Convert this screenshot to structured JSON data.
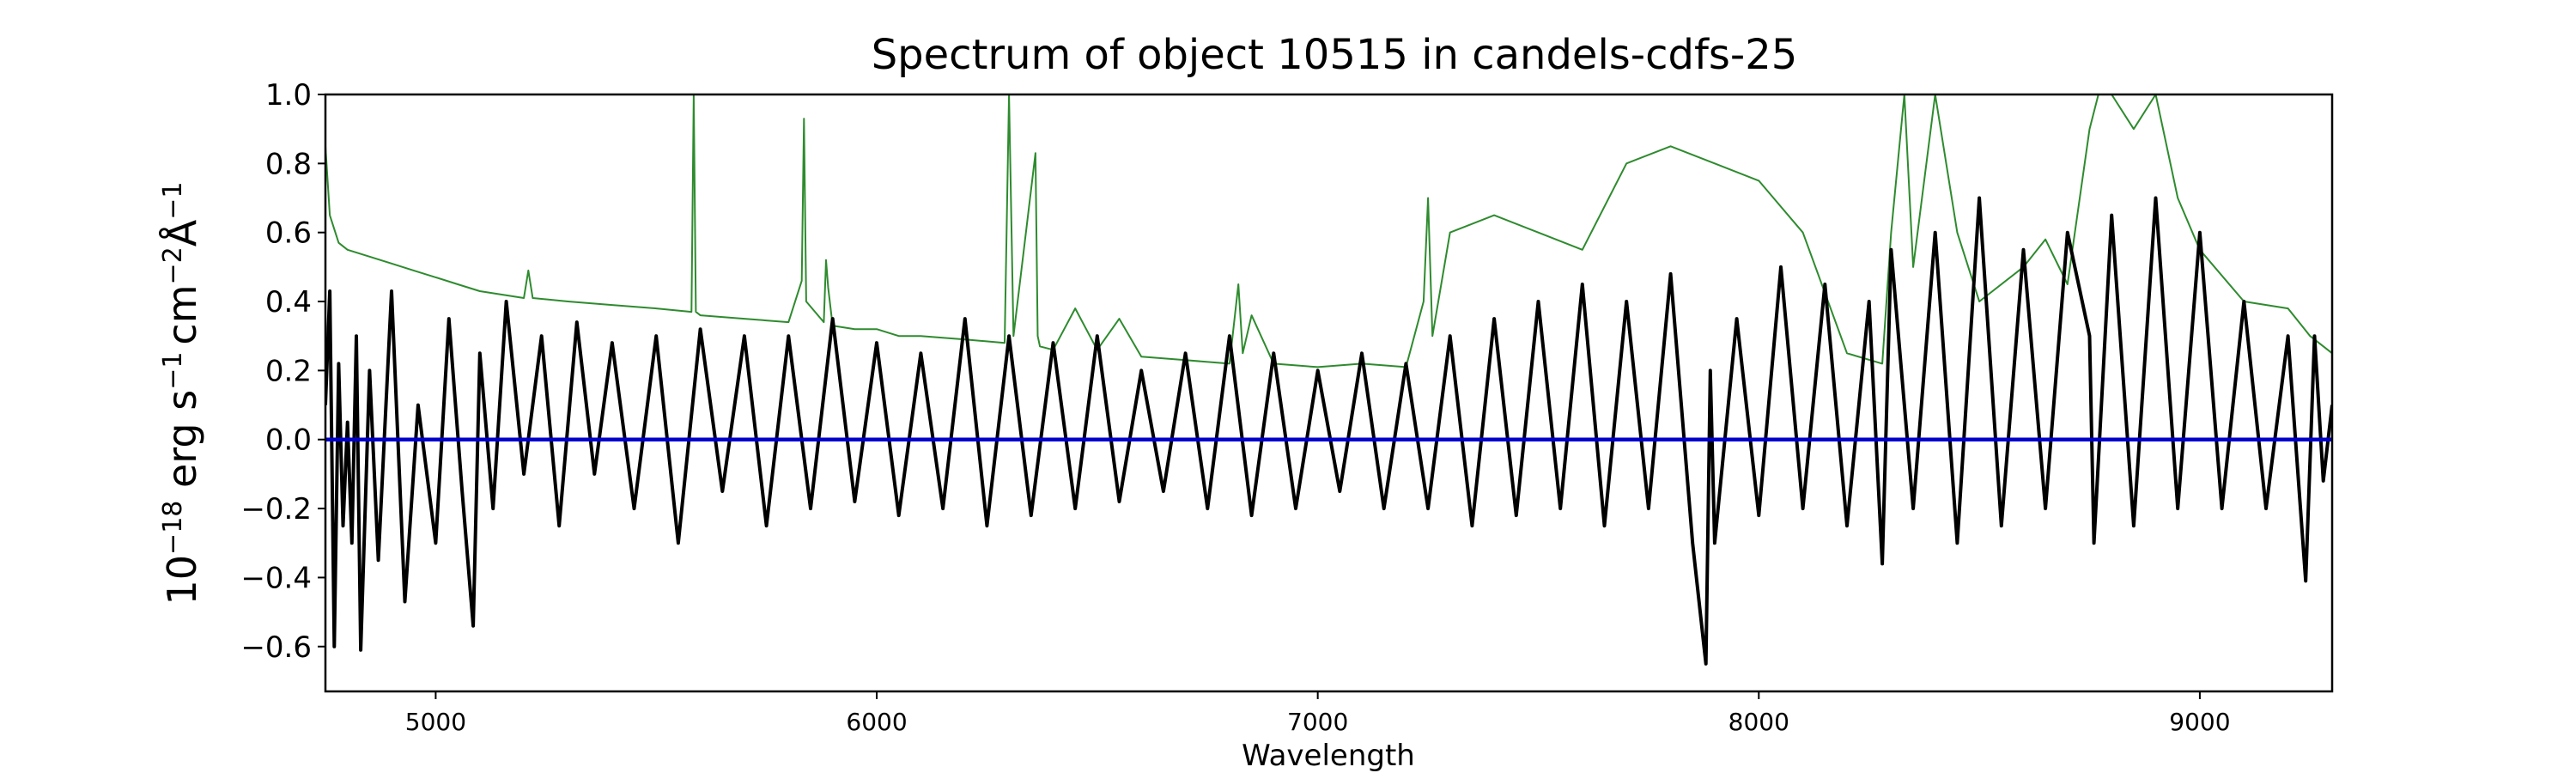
{
  "chart_data": {
    "type": "line",
    "title": "Spectrum of object 10515 in candels-cdfs-25",
    "xlabel": "Wavelength",
    "ylabel": {
      "base": "10",
      "base_exp": "−18",
      "erg": " erg s",
      "s_exp": "−1",
      "cm": "cm",
      "cm_exp": "−2",
      "ang": "Å",
      "ang_exp": "−1"
    },
    "xlim": [
      4750,
      9300
    ],
    "ylim": [
      -0.73,
      1.0
    ],
    "x_ticks": [
      {
        "value": 5000,
        "label": "5000"
      },
      {
        "value": 6000,
        "label": "6000"
      },
      {
        "value": 7000,
        "label": "7000"
      },
      {
        "value": 8000,
        "label": "8000"
      },
      {
        "value": 9000,
        "label": "9000"
      }
    ],
    "y_ticks": [
      {
        "value": 1.0,
        "label": "1.0"
      },
      {
        "value": 0.8,
        "label": "0.8"
      },
      {
        "value": 0.6,
        "label": "0.6"
      },
      {
        "value": 0.4,
        "label": "0.4"
      },
      {
        "value": 0.2,
        "label": "0.2"
      },
      {
        "value": 0.0,
        "label": "0.0"
      },
      {
        "value": -0.2,
        "label": "−0.2"
      },
      {
        "value": -0.4,
        "label": "−0.4"
      },
      {
        "value": -0.6,
        "label": "−0.6"
      }
    ],
    "grid": false,
    "legend": "none",
    "colors": {
      "flux": "#000000",
      "error": "#2e8b2e",
      "zero": "#0000cc"
    },
    "series": [
      {
        "role": "flux",
        "x": [
          4750,
          4760,
          4770,
          4780,
          4790,
          4800,
          4810,
          4820,
          4830,
          4850,
          4870,
          4900,
          4930,
          4960,
          5000,
          5030,
          5060,
          5085,
          5100,
          5130,
          5160,
          5200,
          5240,
          5280,
          5320,
          5360,
          5400,
          5450,
          5500,
          5550,
          5600,
          5650,
          5700,
          5750,
          5800,
          5850,
          5900,
          5950,
          6000,
          6050,
          6100,
          6150,
          6200,
          6250,
          6300,
          6350,
          6400,
          6450,
          6500,
          6550,
          6600,
          6650,
          6700,
          6750,
          6800,
          6850,
          6900,
          6950,
          7000,
          7050,
          7100,
          7150,
          7200,
          7250,
          7300,
          7350,
          7400,
          7450,
          7500,
          7550,
          7600,
          7650,
          7700,
          7750,
          7800,
          7850,
          7880,
          7890,
          7900,
          7950,
          8000,
          8050,
          8100,
          8150,
          8200,
          8250,
          8280,
          8300,
          8350,
          8400,
          8450,
          8500,
          8550,
          8600,
          8650,
          8700,
          8750,
          8760,
          8800,
          8850,
          8900,
          8950,
          9000,
          9050,
          9100,
          9150,
          9200,
          9240,
          9260,
          9280,
          9300
        ],
        "y": [
          0.1,
          0.43,
          -0.6,
          0.22,
          -0.25,
          0.05,
          -0.3,
          0.3,
          -0.61,
          0.2,
          -0.35,
          0.43,
          -0.47,
          0.1,
          -0.3,
          0.35,
          -0.15,
          -0.54,
          0.25,
          -0.2,
          0.4,
          -0.1,
          0.3,
          -0.25,
          0.34,
          -0.1,
          0.28,
          -0.2,
          0.3,
          -0.3,
          0.32,
          -0.15,
          0.3,
          -0.25,
          0.3,
          -0.2,
          0.35,
          -0.18,
          0.28,
          -0.22,
          0.25,
          -0.2,
          0.35,
          -0.25,
          0.3,
          -0.22,
          0.28,
          -0.2,
          0.3,
          -0.18,
          0.2,
          -0.15,
          0.25,
          -0.2,
          0.3,
          -0.22,
          0.25,
          -0.2,
          0.2,
          -0.15,
          0.25,
          -0.2,
          0.22,
          -0.2,
          0.3,
          -0.25,
          0.35,
          -0.22,
          0.4,
          -0.2,
          0.45,
          -0.25,
          0.4,
          -0.2,
          0.48,
          -0.3,
          -0.65,
          0.2,
          -0.3,
          0.35,
          -0.22,
          0.5,
          -0.2,
          0.45,
          -0.25,
          0.4,
          -0.36,
          0.55,
          -0.2,
          0.6,
          -0.3,
          0.7,
          -0.25,
          0.55,
          -0.2,
          0.6,
          0.3,
          -0.3,
          0.65,
          -0.25,
          0.7,
          -0.2,
          0.6,
          -0.2,
          0.4,
          -0.2,
          0.3,
          -0.41,
          0.3,
          -0.12,
          0.1
        ]
      },
      {
        "role": "error",
        "x": [
          4750,
          4760,
          4780,
          4800,
          4850,
          4900,
          4950,
          5000,
          5050,
          5100,
          5150,
          5200,
          5210,
          5220,
          5300,
          5400,
          5500,
          5580,
          5585,
          5590,
          5600,
          5700,
          5800,
          5830,
          5835,
          5840,
          5880,
          5885,
          5890,
          5900,
          5950,
          6000,
          6050,
          6100,
          6200,
          6290,
          6300,
          6310,
          6360,
          6365,
          6370,
          6400,
          6450,
          6500,
          6550,
          6600,
          6700,
          6800,
          6820,
          6830,
          6850,
          6900,
          7000,
          7100,
          7200,
          7240,
          7250,
          7260,
          7300,
          7400,
          7500,
          7600,
          7700,
          7800,
          7900,
          8000,
          8100,
          8200,
          8280,
          8300,
          8330,
          8350,
          8400,
          8450,
          8500,
          8600,
          8650,
          8700,
          8750,
          8770,
          8800,
          8850,
          8900,
          8950,
          9000,
          9100,
          9200,
          9250,
          9300
        ],
        "y": [
          0.85,
          0.65,
          0.57,
          0.55,
          0.53,
          0.51,
          0.49,
          0.47,
          0.45,
          0.43,
          0.42,
          0.41,
          0.49,
          0.41,
          0.4,
          0.39,
          0.38,
          0.37,
          1.0,
          0.37,
          0.36,
          0.35,
          0.34,
          0.46,
          0.93,
          0.4,
          0.34,
          0.52,
          0.44,
          0.33,
          0.32,
          0.32,
          0.3,
          0.3,
          0.29,
          0.28,
          1.0,
          0.3,
          0.83,
          0.3,
          0.27,
          0.26,
          0.38,
          0.26,
          0.35,
          0.24,
          0.23,
          0.22,
          0.45,
          0.25,
          0.36,
          0.22,
          0.21,
          0.22,
          0.21,
          0.4,
          0.7,
          0.3,
          0.6,
          0.65,
          0.6,
          0.55,
          0.8,
          0.85,
          0.8,
          0.75,
          0.6,
          0.25,
          0.22,
          0.6,
          1.0,
          0.5,
          1.0,
          0.6,
          0.4,
          0.5,
          0.58,
          0.45,
          0.9,
          1.0,
          1.0,
          0.9,
          1.0,
          0.7,
          0.55,
          0.4,
          0.38,
          0.3,
          0.25
        ]
      },
      {
        "role": "zero",
        "x": [
          4750,
          9300
        ],
        "y": [
          0.0,
          0.0
        ]
      }
    ]
  }
}
